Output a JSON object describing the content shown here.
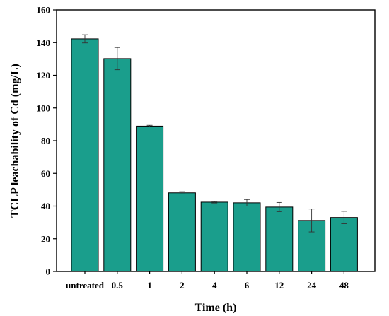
{
  "chart_data": {
    "type": "bar",
    "xlabel": "Time (h)",
    "ylabel": "TCLP leachability of Cd (mg/L)",
    "ylim": [
      0,
      160
    ],
    "yticks": [
      0,
      20,
      40,
      60,
      80,
      100,
      120,
      140,
      160
    ],
    "grid": false,
    "categories": [
      "untreated",
      "0.5",
      "1",
      "2",
      "4",
      "6",
      "12",
      "24",
      "48"
    ],
    "values": [
      142.3,
      130.2,
      88.9,
      48.1,
      42.4,
      42.0,
      39.4,
      31.2,
      33.0
    ],
    "errors": [
      2.5,
      6.8,
      0.5,
      0.7,
      0.5,
      2.0,
      2.8,
      7.0,
      3.8
    ],
    "bar_color": "#1a9e8c",
    "bar_edge_color": "#000000"
  }
}
